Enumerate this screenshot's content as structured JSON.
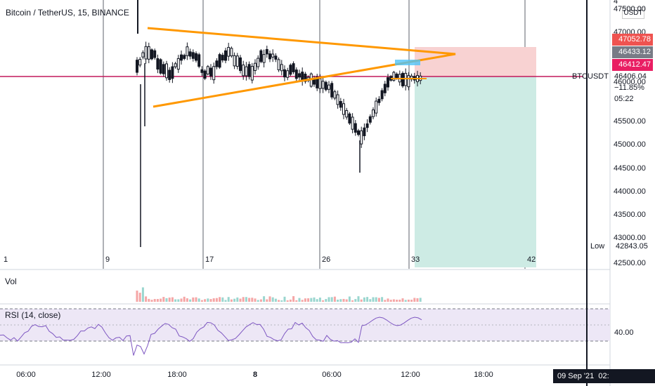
{
  "header": {
    "title": "Bitcoin / TetherUS, 15, BINANCE"
  },
  "price_axis": {
    "currency": "USDT",
    "ticks": [
      "47500.00",
      "47000.00",
      "46000.00",
      "45500.00",
      "45000.00",
      "44500.00",
      "44000.00",
      "43500.00",
      "43000.00",
      "42500.00"
    ],
    "top_cut": "4",
    "tags": {
      "target": "47052.78",
      "last": "46433.12",
      "entry": "46412.47",
      "symbol_price": "46406.04",
      "change": "−11.85%",
      "countdown": "05:22",
      "low_label": "Low",
      "low_value": "42843.05"
    },
    "symbol_label": "BTCUSDT"
  },
  "bar_numbers": [
    "1",
    "9",
    "17",
    "26",
    "33",
    "42"
  ],
  "time_axis": {
    "ticks": [
      "06:00",
      "12:00",
      "18:00",
      "8",
      "06:00",
      "12:00",
      "18:00"
    ],
    "cursor_date": "09 Sep '21",
    "cursor_time": "02:"
  },
  "panes": {
    "volume": "Vol",
    "rsi": "RSI (14, close)",
    "rsi_value": "40.00"
  },
  "colors": {
    "triangle": "#ff9800",
    "horizontal_line": "#c2185b",
    "stop_zone": "#f8d2d2",
    "target_zone": "#cdebe4",
    "candle": "#131722",
    "rsi_line": "#7e57c2",
    "rsi_band": "#ede7f6",
    "volume_up": "#9ad6cf",
    "volume_down": "#f5a6a6",
    "cursor": "#131722"
  }
}
